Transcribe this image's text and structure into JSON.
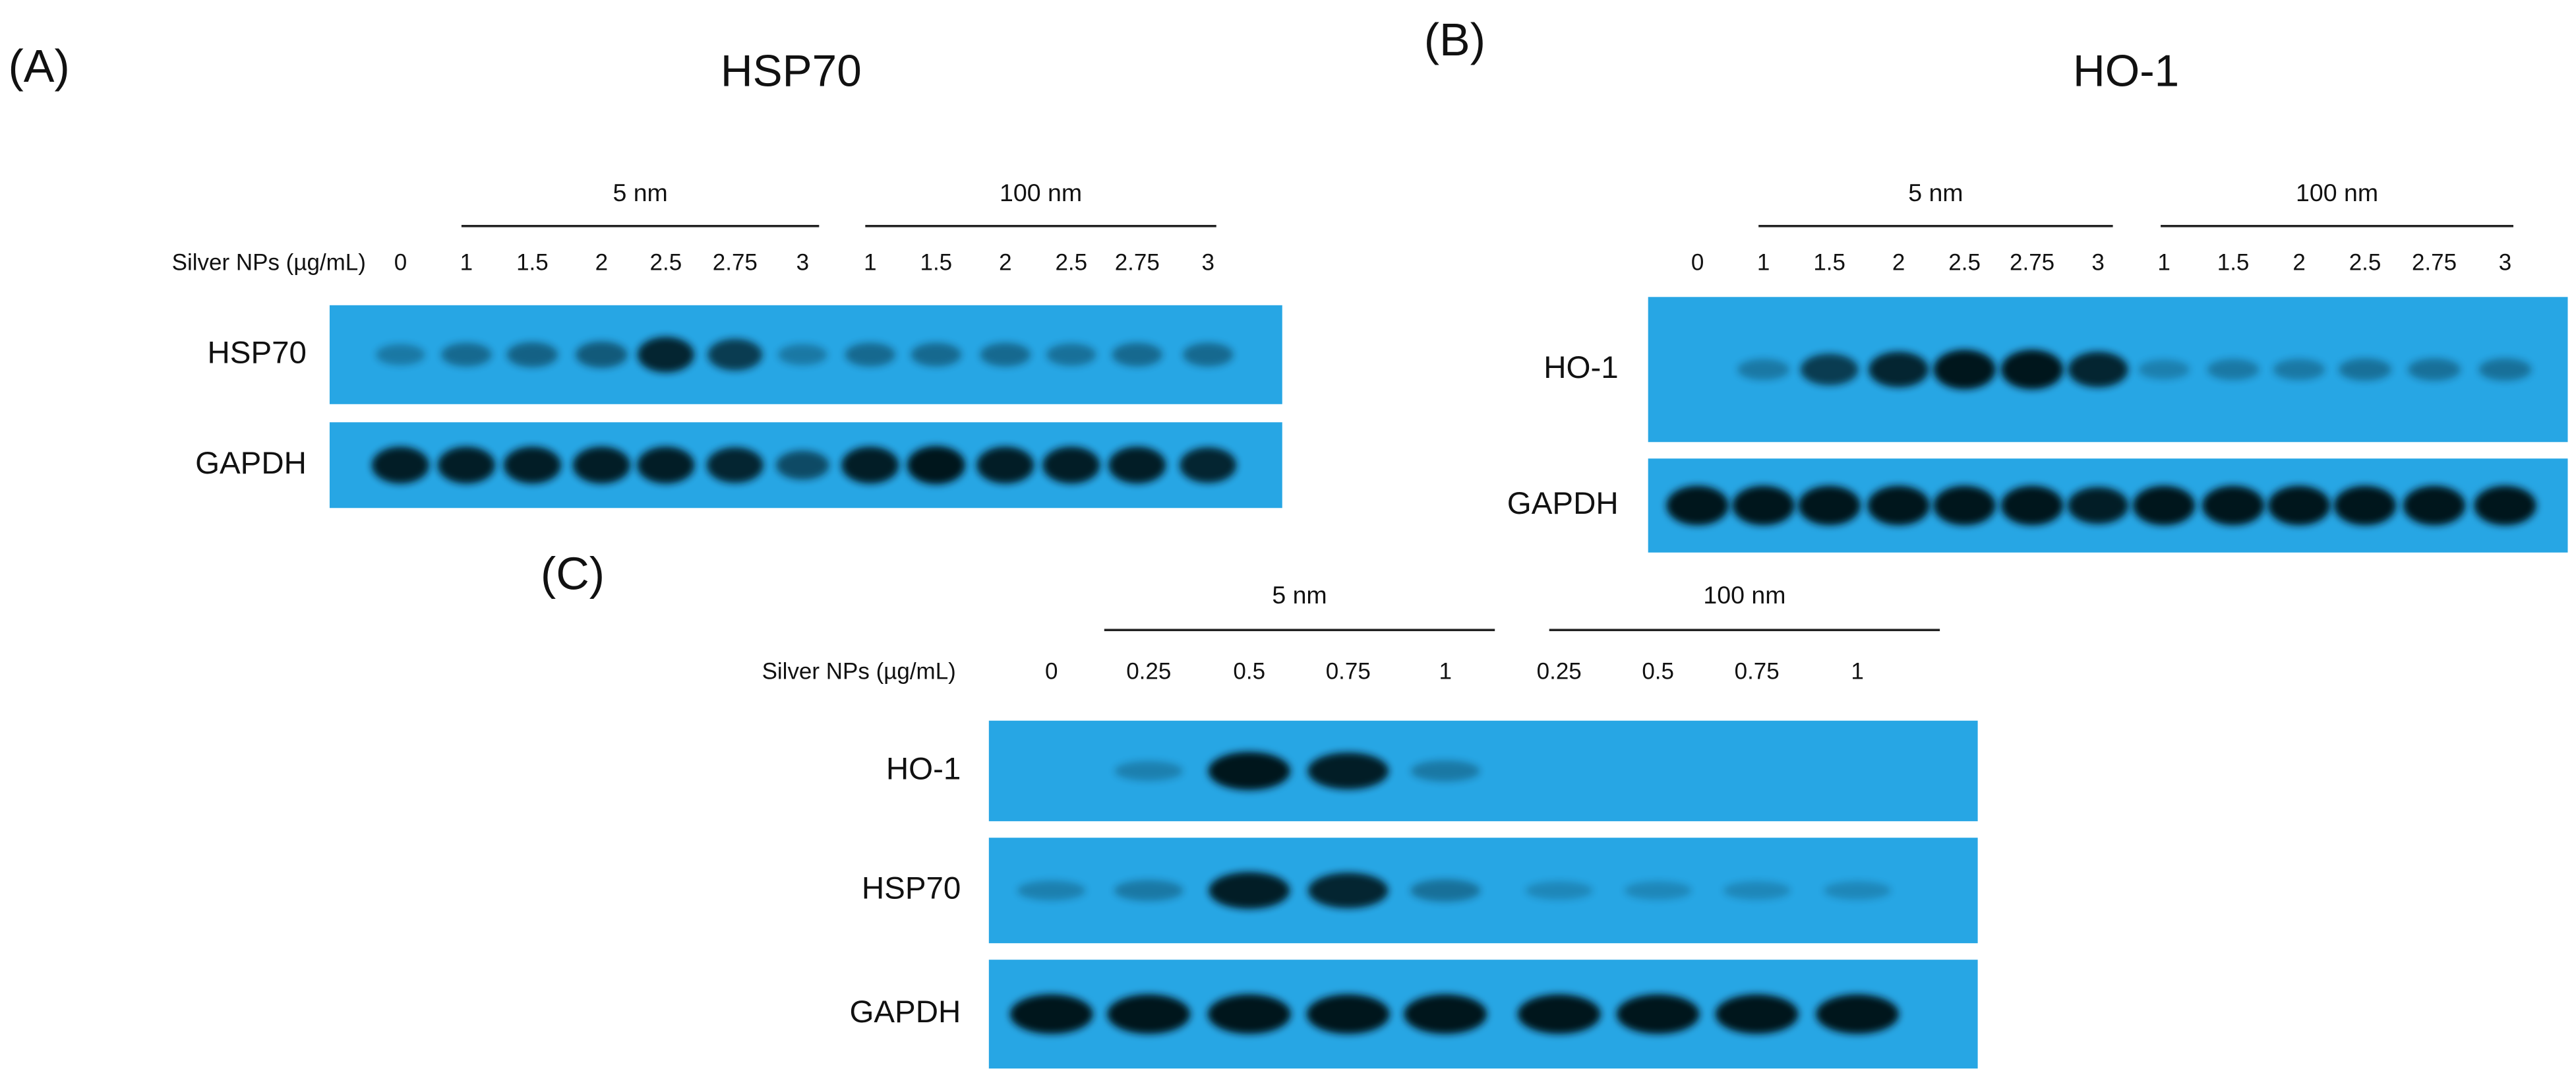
{
  "panels": [
    {
      "label": "(A)",
      "title": "HSP70",
      "dose_label": "Silver NPs (µg/mL)",
      "groups": [
        "5 nm",
        "100 nm"
      ],
      "lanes": [
        "0",
        "1",
        "1.5",
        "2",
        "2.5",
        "2.75",
        "3",
        "1",
        "1.5",
        "2",
        "2.5",
        "2.75",
        "3"
      ],
      "blots": [
        "HSP70",
        "GAPDH"
      ]
    },
    {
      "label": "(B)",
      "title": "HO-1",
      "groups": [
        "5 nm",
        "100 nm"
      ],
      "lanes": [
        "0",
        "1",
        "1.5",
        "2",
        "2.5",
        "2.75",
        "3",
        "1",
        "1.5",
        "2",
        "2.5",
        "2.75",
        "3"
      ],
      "blots": [
        "HO-1",
        "GAPDH"
      ]
    },
    {
      "label": "(C)",
      "dose_label": "Silver NPs (µg/mL)",
      "groups": [
        "5 nm",
        "100 nm"
      ],
      "lanes": [
        "0",
        "0.25",
        "0.5",
        "0.75",
        "1",
        "0.25",
        "0.5",
        "0.75",
        "1"
      ],
      "blots": [
        "HO-1",
        "HSP70",
        "GAPDH"
      ]
    }
  ]
}
